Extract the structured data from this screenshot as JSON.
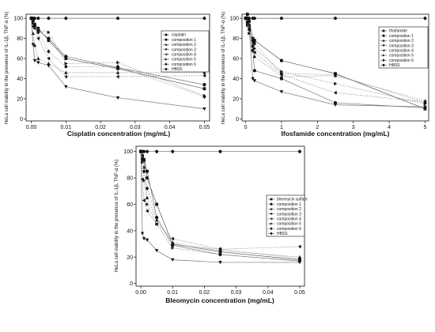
{
  "chart_data": [
    {
      "type": "line",
      "xlabel": "Cisplatin concentration (mg/mL)",
      "ylabel": "HeLa cell viability in the presence of IL-1β, TNF-α (%)",
      "xlim": [
        -0.0015,
        0.0515
      ],
      "ylim": [
        -2,
        104
      ],
      "xticks": [
        0.0,
        0.01,
        0.02,
        0.03,
        0.04,
        0.05
      ],
      "xtick_labels": [
        "0.00",
        "0.01",
        "0.02",
        "0.03",
        "0.04",
        "0.05"
      ],
      "yticks": [
        0,
        20,
        40,
        60,
        80,
        100
      ],
      "ytick_labels": [
        "0",
        "20",
        "40",
        "60",
        "80",
        "100"
      ],
      "legend_position": "top-right",
      "x": [
        0,
        0.0005,
        0.001,
        0.002,
        0.005,
        0.01,
        0.025,
        0.05
      ],
      "series": [
        {
          "name": "cisplatin",
          "marker": "square",
          "values": [
            100,
            98,
            94,
            90,
            78,
            60,
            50,
            30
          ]
        },
        {
          "name": "composition 1",
          "marker": "circle",
          "values": [
            100,
            97,
            93,
            88,
            80,
            62,
            51,
            34
          ]
        },
        {
          "name": "composition 2",
          "marker": "triangle-up",
          "values": [
            100,
            85,
            73,
            60,
            55,
            46,
            46,
            46
          ]
        },
        {
          "name": "composition 3",
          "marker": "triangle-down",
          "values": [
            100,
            74,
            58,
            56,
            53,
            32,
            21,
            10
          ]
        },
        {
          "name": "composition 4",
          "marker": "triangle-left",
          "values": [
            100,
            92,
            90,
            80,
            60,
            42,
            42,
            43
          ]
        },
        {
          "name": "composition 5",
          "marker": "triangle-right",
          "values": [
            100,
            95,
            91,
            88,
            86,
            55,
            56,
            23
          ]
        },
        {
          "name": "composition 6",
          "marker": "diamond",
          "values": [
            100,
            98,
            93,
            86,
            67,
            52,
            52,
            22
          ]
        },
        {
          "name": "HBSS",
          "marker": "hexagon",
          "values": [
            100,
            100,
            100,
            100,
            100,
            100,
            100,
            100
          ]
        }
      ]
    },
    {
      "type": "line",
      "xlabel": "Ifosfamide concentration (mg/mL)",
      "ylabel": "HeLa cell viability in the presence of IL-1β, TNF-α (%)",
      "xlim": [
        -0.1,
        5.1
      ],
      "ylim": [
        -2,
        104
      ],
      "xticks": [
        0,
        1,
        2,
        3,
        4,
        5
      ],
      "xtick_labels": [
        "0",
        "1",
        "2",
        "3",
        "4",
        "5"
      ],
      "yticks": [
        0,
        20,
        40,
        60,
        80,
        100
      ],
      "ytick_labels": [
        "0",
        "20",
        "40",
        "60",
        "80",
        "100"
      ],
      "legend_position": "top-right",
      "x": [
        0,
        0.05,
        0.1,
        0.2,
        0.25,
        1,
        2.5,
        5
      ],
      "series": [
        {
          "name": "Ifosfamide",
          "marker": "square",
          "values": [
            100,
            104,
            97,
            80,
            78,
            58,
            45,
            10
          ]
        },
        {
          "name": "composition 1",
          "marker": "circle",
          "values": [
            100,
            96,
            93,
            68,
            48,
            40,
            16,
            11
          ]
        },
        {
          "name": "composition 2",
          "marker": "triangle-up",
          "values": [
            100,
            97,
            92,
            74,
            62,
            42,
            43,
            18
          ]
        },
        {
          "name": "composition 3",
          "marker": "triangle-down",
          "values": [
            100,
            95,
            90,
            40,
            38,
            27,
            14,
            12
          ]
        },
        {
          "name": "composition 4",
          "marker": "triangle-left",
          "values": [
            100,
            94,
            88,
            76,
            66,
            44,
            26,
            17
          ]
        },
        {
          "name": "composition 5",
          "marker": "triangle-right",
          "values": [
            100,
            93,
            85,
            72,
            70,
            47,
            35,
            15
          ]
        },
        {
          "name": "composition 6",
          "marker": "diamond",
          "values": [
            100,
            96,
            89,
            78,
            75,
            45,
            44,
            16
          ]
        },
        {
          "name": "HBSS",
          "marker": "hexagon",
          "values": [
            100,
            100,
            100,
            100,
            100,
            100,
            100,
            100
          ]
        }
      ]
    },
    {
      "type": "line",
      "xlabel": "Bleomycin concentration (mg/mL)",
      "ylabel": "HeLa cell viability in the presence of IL-1β, TNF-α (%)",
      "xlim": [
        -0.0015,
        0.0515
      ],
      "ylim": [
        -2,
        104
      ],
      "xticks": [
        0.0,
        0.01,
        0.02,
        0.03,
        0.04,
        0.05
      ],
      "xtick_labels": [
        "0.00",
        "0.01",
        "0.02",
        "0.03",
        "0.04",
        "0.05"
      ],
      "yticks": [
        0,
        20,
        40,
        60,
        80,
        100
      ],
      "ytick_labels": [
        "0",
        "20",
        "40",
        "60",
        "80",
        "100"
      ],
      "legend_position": "top-right",
      "x": [
        0,
        0.0005,
        0.001,
        0.002,
        0.005,
        0.01,
        0.025,
        0.05
      ],
      "series": [
        {
          "name": "bleomycin sulfate",
          "marker": "square",
          "values": [
            100,
            96,
            93,
            80,
            60,
            30,
            24,
            18
          ]
        },
        {
          "name": "composition 1",
          "marker": "circle",
          "values": [
            100,
            97,
            94,
            85,
            50,
            29,
            22,
            17
          ]
        },
        {
          "name": "composition 2",
          "marker": "triangle-up",
          "values": [
            100,
            95,
            88,
            65,
            48,
            31,
            25,
            20
          ]
        },
        {
          "name": "composition 3",
          "marker": "triangle-down",
          "values": [
            100,
            38,
            34,
            33,
            25,
            18,
            16,
            16
          ]
        },
        {
          "name": "composition 4",
          "marker": "triangle-left",
          "values": [
            100,
            79,
            63,
            55,
            45,
            34,
            26,
            28
          ]
        },
        {
          "name": "composition 5",
          "marker": "triangle-right",
          "values": [
            100,
            92,
            78,
            60,
            45,
            27,
            22,
            17
          ]
        },
        {
          "name": "composition 6",
          "marker": "diamond",
          "values": [
            100,
            94,
            85,
            72,
            50,
            29,
            26,
            19
          ]
        },
        {
          "name": "HBSS",
          "marker": "hexagon",
          "values": [
            100,
            100,
            100,
            100,
            100,
            100,
            100,
            100
          ]
        }
      ]
    }
  ]
}
